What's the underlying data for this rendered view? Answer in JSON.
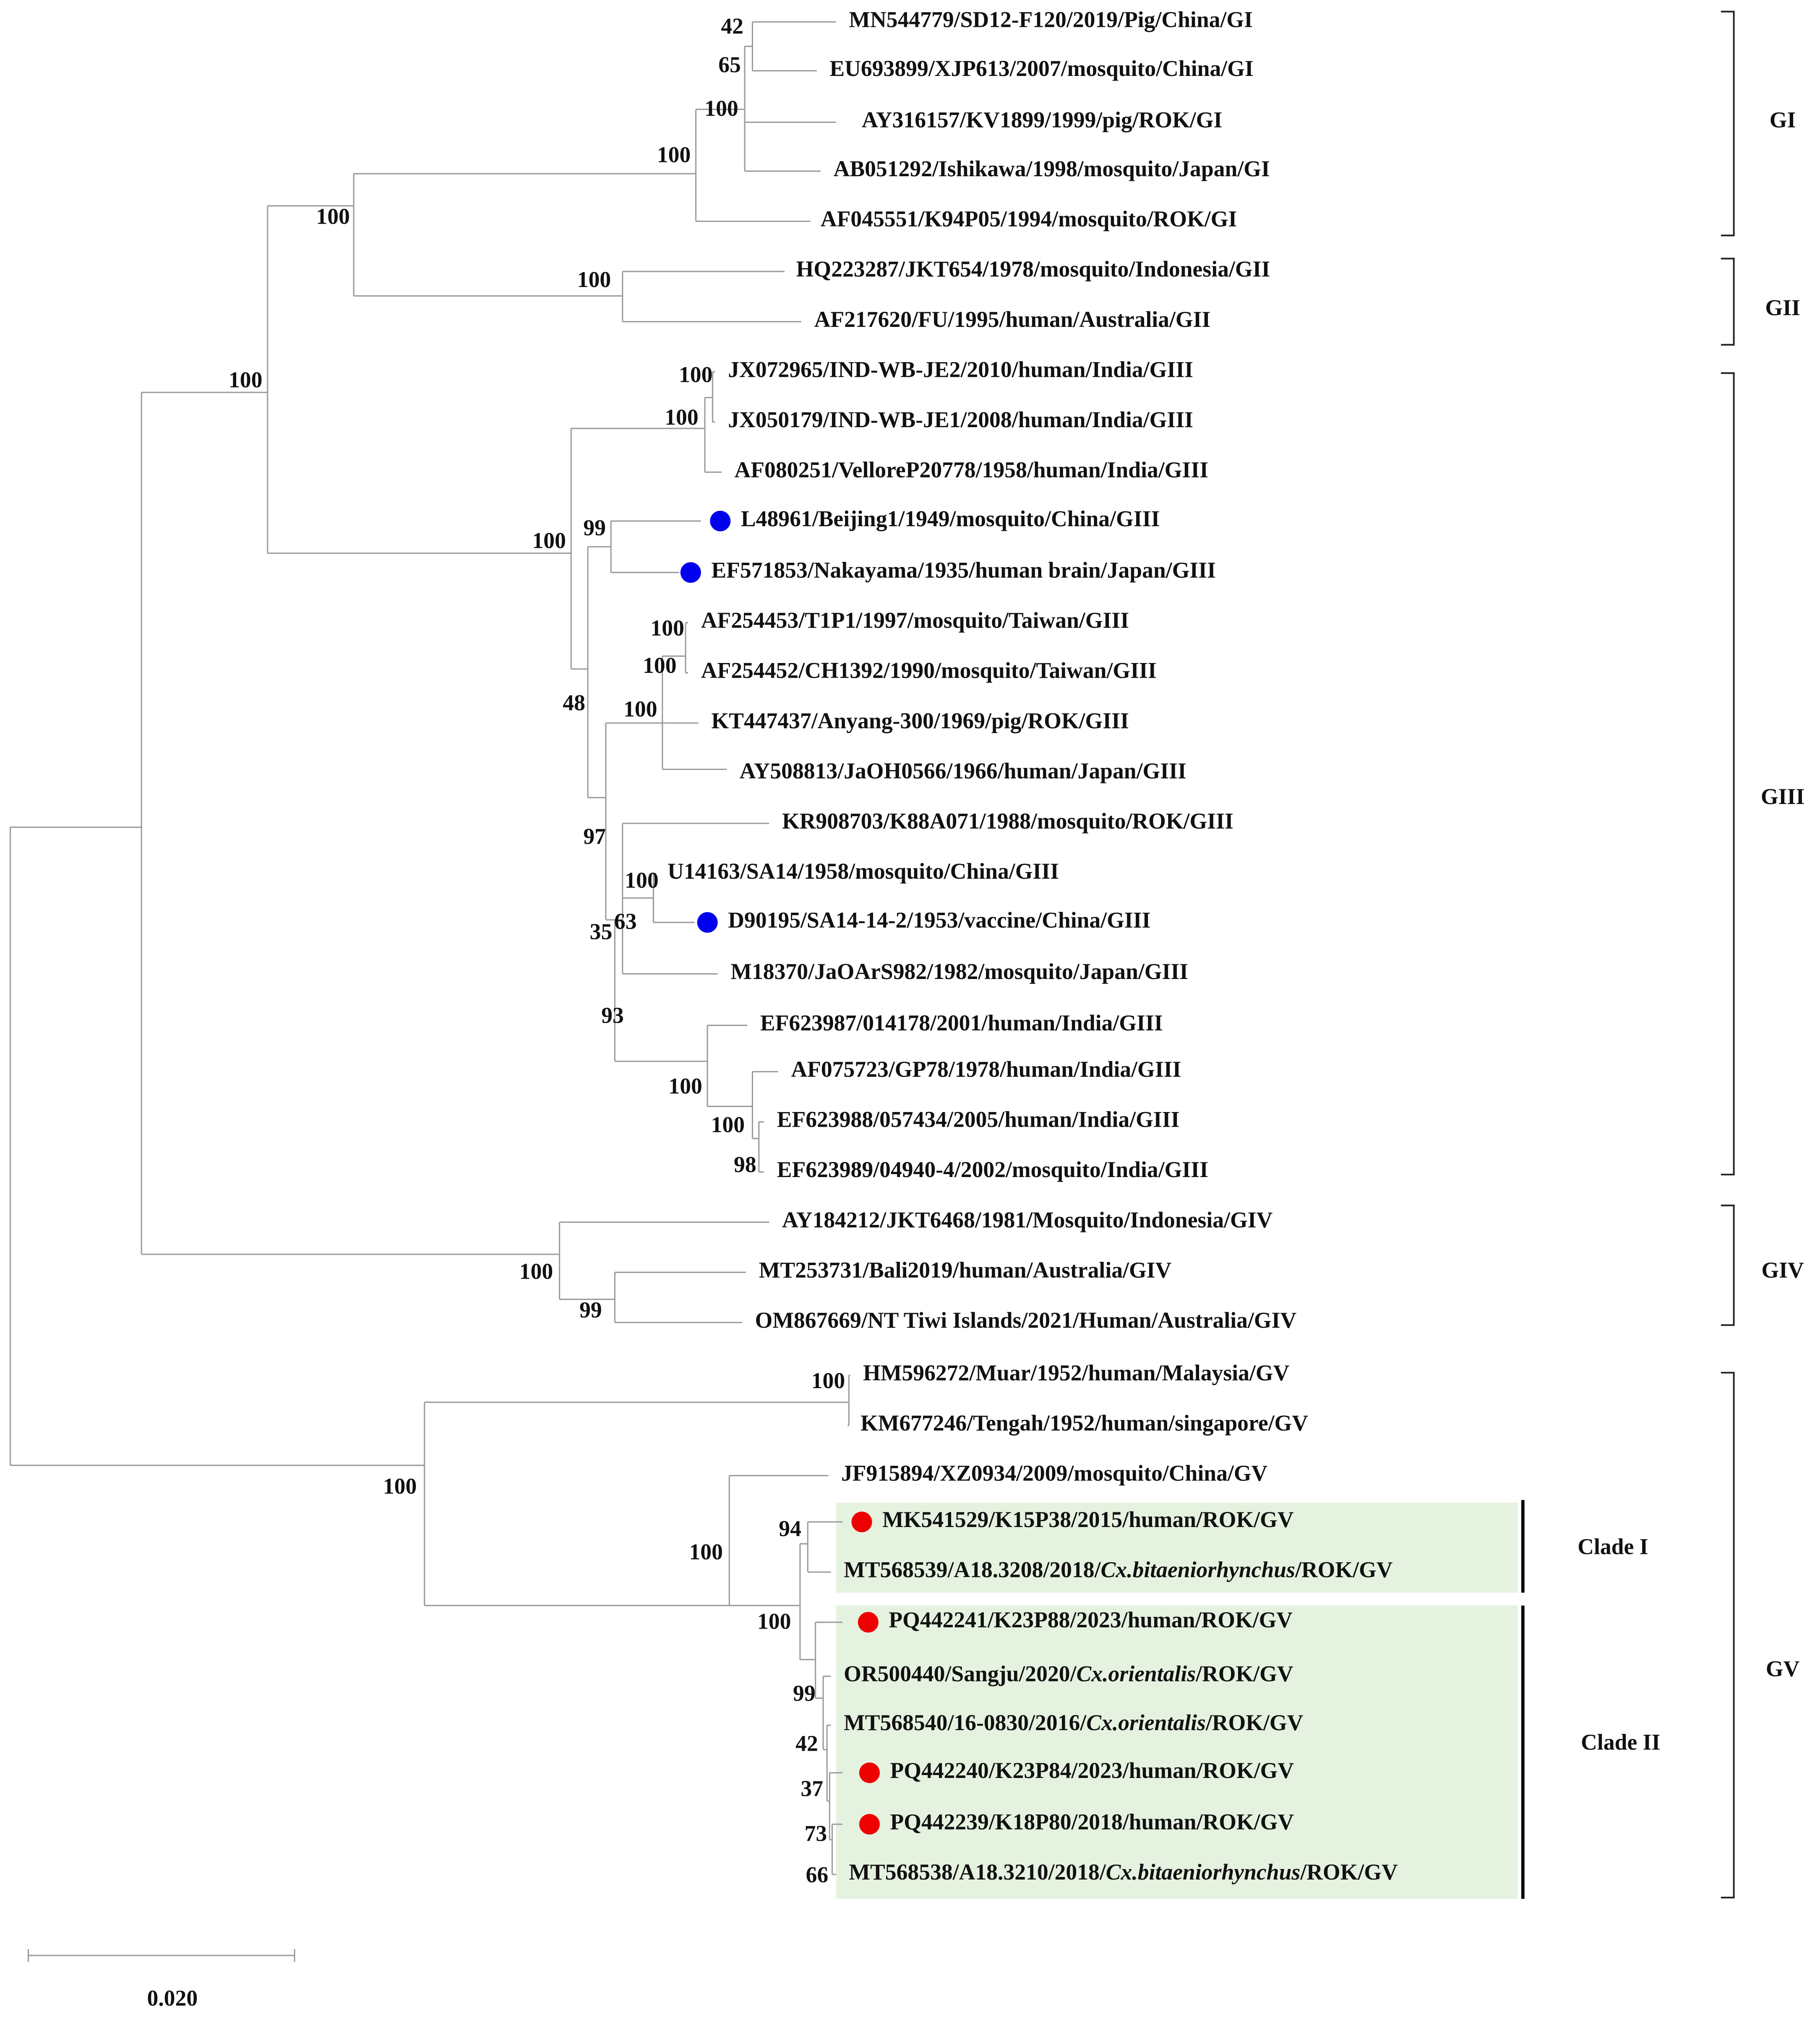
{
  "leaves": [
    "MN544779/SD12-F120/2019/Pig/China/GI",
    "EU693899/XJP613/2007/mosquito/China/GI",
    "AY316157/KV1899/1999/pig/ROK/GI",
    "AB051292/Ishikawa/1998/mosquito/Japan/GI",
    "AF045551/K94P05/1994/mosquito/ROK/GI",
    "HQ223287/JKT654/1978/mosquito/Indonesia/GII",
    "AF217620/FU/1995/human/Australia/GII",
    "JX072965/IND-WB-JE2/2010/human/India/GIII",
    "JX050179/IND-WB-JE1/2008/human/India/GIII",
    "AF080251/VelloreP20778/1958/human/India/GIII",
    "L48961/Beijing1/1949/mosquito/China/GIII",
    "EF571853/Nakayama/1935/human brain/Japan/GIII",
    "AF254453/T1P1/1997/mosquito/Taiwan/GIII",
    "AF254452/CH1392/1990/mosquito/Taiwan/GIII",
    "KT447437/Anyang-300/1969/pig/ROK/GIII",
    "AY508813/JaOH0566/1966/human/Japan/GIII",
    "KR908703/K88A071/1988/mosquito/ROK/GIII",
    "U14163/SA14/1958/mosquito/China/GIII",
    "D90195/SA14-14-2/1953/vaccine/China/GIII",
    "M18370/JaOArS982/1982/mosquito/Japan/GIII",
    "EF623987/014178/2001/human/India/GIII",
    "AF075723/GP78/1978/human/India/GIII",
    "EF623988/057434/2005/human/India/GIII",
    "EF623989/04940-4/2002/mosquito/India/GIII",
    "AY184212/JKT6468/1981/Mosquito/Indonesia/GIV",
    "MT253731/Bali2019/human/Australia/GIV",
    "OM867669/NT Tiwi Islands/2021/Human/Australia/GIV",
    "HM596272/Muar/1952/human/Malaysia/GV",
    "KM677246/Tengah/1952/human/singapore/GV",
    "JF915894/XZ0934/2009/mosquito/China/GV",
    "MK541529/K15P38/2015/human/ROK/GV",
    [
      "MT568539/A18.3208/2018/",
      "Cx.bitaeniorhynchus",
      "/ROK/GV"
    ],
    "PQ442241/K23P88/2023/human/ROK/GV",
    [
      "OR500440/Sangju/2020/",
      "Cx.orientalis",
      "/ROK/GV"
    ],
    [
      "MT568540/16-0830/2016/",
      "Cx.orientalis",
      "/ROK/GV"
    ],
    "PQ442240/K23P84/2023/human/ROK/GV",
    "PQ442239/K18P80/2018/human/ROK/GV",
    [
      "MT568538/A18.3210/2018/",
      "Cx.bitaeniorhynchus",
      "/ROK/GV"
    ]
  ],
  "bootstraps": [
    "42",
    "65",
    "100",
    "100",
    "100",
    "100",
    "100",
    "100",
    "100",
    "100",
    "99",
    "48",
    "100",
    "100",
    "100",
    "97",
    "100",
    "35",
    "63",
    "93",
    "100",
    "100",
    "98",
    "100",
    "99",
    "100",
    "100",
    "94",
    "100",
    "100",
    "99",
    "42",
    "37",
    "73",
    "66"
  ],
  "genotypes": [
    "GI",
    "GII",
    "GIII",
    "GIV",
    "GV"
  ],
  "clades": [
    "Clade I",
    "Clade II"
  ],
  "scale_bar": "0.020"
}
